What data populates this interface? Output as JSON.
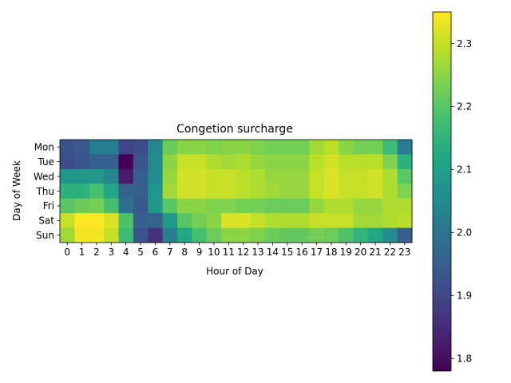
{
  "chart_data": {
    "type": "heatmap",
    "title": "Congetion surcharge",
    "xlabel": "Hour of Day",
    "ylabel": "Day of Week",
    "x_categories": [
      "0",
      "1",
      "2",
      "3",
      "4",
      "5",
      "6",
      "7",
      "8",
      "9",
      "10",
      "11",
      "12",
      "13",
      "14",
      "15",
      "16",
      "17",
      "18",
      "19",
      "20",
      "21",
      "22",
      "23"
    ],
    "y_categories": [
      "Mon",
      "Tue",
      "Wed",
      "Thu",
      "Fri",
      "Sat",
      "Sun"
    ],
    "colormap": "viridis",
    "vmin": 1.78,
    "vmax": 2.35,
    "colorbar_ticks": [
      1.8,
      1.9,
      2.0,
      2.1,
      2.2,
      2.3
    ],
    "colorbar_tick_labels": [
      "1.8",
      "1.9",
      "2.0",
      "2.1",
      "2.2",
      "2.3"
    ],
    "values": [
      [
        1.92,
        1.94,
        2.02,
        2.02,
        1.9,
        1.91,
        2.04,
        2.22,
        2.25,
        2.25,
        2.24,
        2.25,
        2.25,
        2.24,
        2.23,
        2.23,
        2.23,
        2.27,
        2.29,
        2.25,
        2.23,
        2.23,
        2.17,
        2.02
      ],
      [
        1.91,
        1.93,
        1.95,
        1.95,
        1.78,
        1.93,
        2.05,
        2.25,
        2.3,
        2.3,
        2.28,
        2.27,
        2.28,
        2.26,
        2.25,
        2.25,
        2.25,
        2.29,
        2.31,
        2.29,
        2.29,
        2.29,
        2.24,
        2.14
      ],
      [
        2.08,
        2.08,
        2.08,
        2.04,
        1.82,
        1.95,
        2.05,
        2.26,
        2.31,
        2.31,
        2.3,
        2.3,
        2.29,
        2.28,
        2.26,
        2.26,
        2.26,
        2.3,
        2.32,
        2.3,
        2.3,
        2.31,
        2.28,
        2.2
      ],
      [
        2.14,
        2.14,
        2.18,
        2.12,
        1.96,
        1.95,
        2.08,
        2.27,
        2.31,
        2.31,
        2.3,
        2.3,
        2.29,
        2.28,
        2.27,
        2.26,
        2.26,
        2.3,
        2.32,
        2.3,
        2.3,
        2.31,
        2.28,
        2.24
      ],
      [
        2.2,
        2.22,
        2.23,
        2.18,
        1.99,
        1.94,
        2.08,
        2.2,
        2.25,
        2.25,
        2.24,
        2.24,
        2.23,
        2.23,
        2.22,
        2.22,
        2.22,
        2.26,
        2.28,
        2.28,
        2.26,
        2.26,
        2.28,
        2.28
      ],
      [
        2.3,
        2.35,
        2.35,
        2.32,
        2.19,
        1.95,
        1.96,
        2.09,
        2.2,
        2.23,
        2.25,
        2.32,
        2.32,
        2.3,
        2.28,
        2.28,
        2.28,
        2.3,
        2.3,
        2.3,
        2.27,
        2.27,
        2.28,
        2.29
      ],
      [
        2.27,
        2.34,
        2.34,
        2.3,
        2.17,
        1.93,
        1.86,
        2.02,
        2.12,
        2.18,
        2.22,
        2.25,
        2.25,
        2.24,
        2.22,
        2.21,
        2.21,
        2.23,
        2.22,
        2.19,
        2.15,
        2.12,
        2.05,
        1.95
      ]
    ]
  }
}
